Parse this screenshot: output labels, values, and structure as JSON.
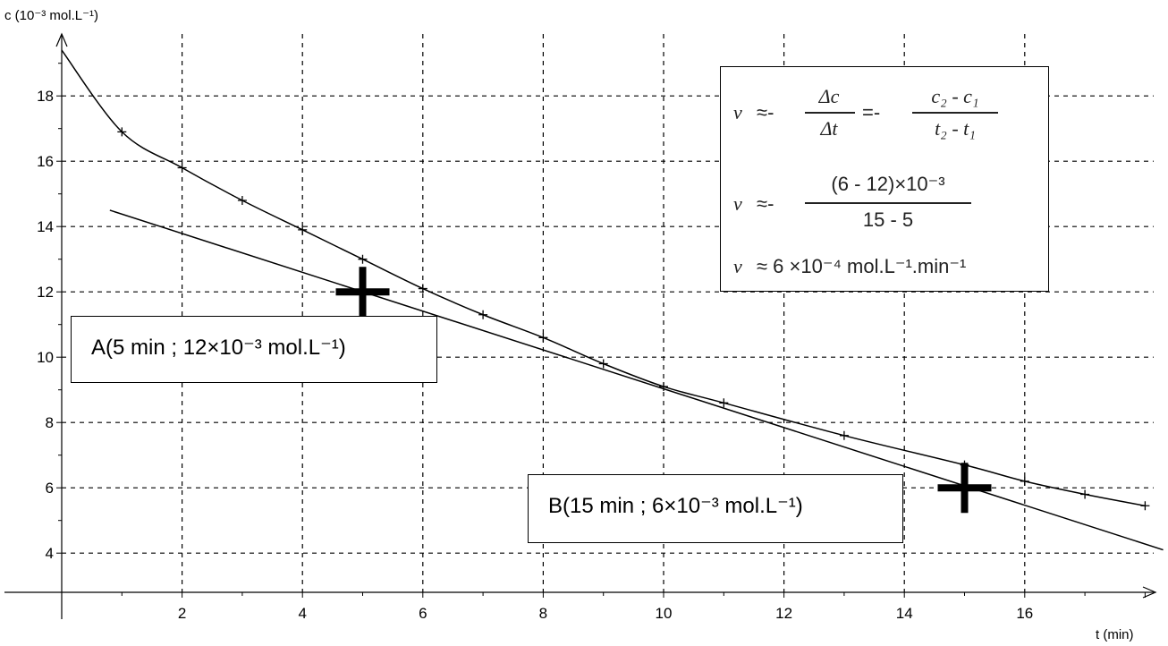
{
  "chart_data": {
    "type": "scatter",
    "x_axis": {
      "label": "t (min)",
      "range": [
        0,
        18
      ],
      "ticks": [
        2,
        4,
        6,
        8,
        10,
        12,
        14,
        16
      ]
    },
    "y_axis": {
      "label": "c (10⁻³ mol.L⁻¹)",
      "range": [
        3,
        20
      ],
      "ticks": [
        4,
        6,
        8,
        10,
        12,
        14,
        16,
        18
      ]
    },
    "grid": true,
    "measurements": {
      "t": [
        0,
        1,
        2,
        3,
        4,
        5,
        6,
        7,
        8,
        9,
        10,
        11,
        13,
        15,
        16,
        17,
        18
      ],
      "c": [
        19.4,
        16.9,
        15.8,
        14.8,
        13.9,
        13.0,
        12.1,
        11.3,
        10.6,
        9.8,
        9.1,
        8.6,
        7.6,
        6.7,
        6.2,
        5.8,
        5.45
      ]
    },
    "tangent": {
      "t": [
        0.8,
        18.3
      ],
      "c": [
        14.5,
        4.1
      ]
    },
    "points": [
      {
        "t": 5,
        "c": 12
      },
      {
        "t": 15,
        "c": 6
      }
    ]
  },
  "annotations": {
    "point_a_label": "A(5 min ; 12×10⁻³ mol.L⁻¹)",
    "point_b_label": "B(15 min ; 6×10⁻³ mol.L⁻¹)"
  },
  "formula": {
    "v": "v",
    "approx_minus": "≈-",
    "delta_c": "Δc",
    "delta_t": "Δt",
    "equals_minus": "=-",
    "cb_minus_ca": "c₂ - c₁",
    "tb_minus_ta": "t₂ - t₁",
    "numerator_values": "(6 - 12)×10⁻³",
    "denominator_values": "15 - 5",
    "result": "≈ 6 ×10⁻⁴ mol.L⁻¹.min⁻¹"
  }
}
